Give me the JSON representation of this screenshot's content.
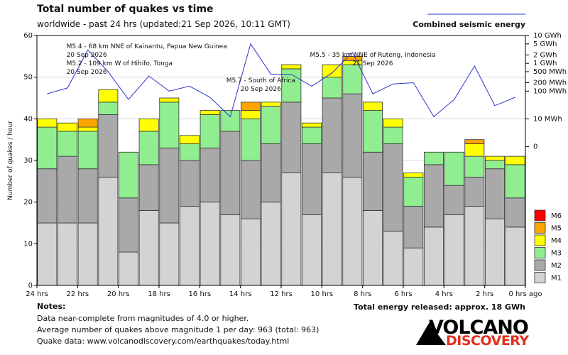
{
  "title": "Total number of quakes vs time",
  "subtitle": "worldwide - past 24 hrs (updated:21 Sep 2026, 10:11 GMT)",
  "energy_legend_label": "Combined seismic energy",
  "total_energy": "Total energy released: approx. 18 GWh",
  "notes": {
    "heading": "Notes:",
    "lines": [
      "Data near-complete from magnitudes of 4.0 or higher.",
      "Average number of quakes above magnitude 1 per day: 963 (total: 963)",
      "Quake data: www.volcanodiscovery.com/earthquakes/today.html"
    ]
  },
  "logo": {
    "line1": "VOLCANO",
    "line2": "DISCOVERY"
  },
  "colors": {
    "M1": "#d3d3d3",
    "M2": "#a9a9a9",
    "M3": "#90ee90",
    "M4": "#ffff00",
    "M5": "#ffa500",
    "M6": "#ff0000",
    "energy_line": "#2a35c8",
    "bar_outline": "#333333",
    "grid": "#dcdcdc"
  },
  "chart_data": {
    "type": "bar",
    "stacked": true,
    "ylabel": "Number of quakes / hour",
    "ylim": [
      0,
      60
    ],
    "yticks": [
      0,
      10,
      20,
      30,
      40,
      50,
      60
    ],
    "xlim": [
      24,
      0
    ],
    "xticks": [
      {
        "value": 24,
        "label": "24 hrs"
      },
      {
        "value": 22,
        "label": "22 hrs"
      },
      {
        "value": 20,
        "label": "20 hrs"
      },
      {
        "value": 18,
        "label": "18 hrs"
      },
      {
        "value": 16,
        "label": "16 hrs"
      },
      {
        "value": 14,
        "label": "14 hrs"
      },
      {
        "value": 12,
        "label": "12 hrs"
      },
      {
        "value": 10,
        "label": "10 hrs"
      },
      {
        "value": 8,
        "label": "8 hrs"
      },
      {
        "value": 6,
        "label": "6 hrs"
      },
      {
        "value": 4,
        "label": "4 hrs"
      },
      {
        "value": 2,
        "label": "2 hrs"
      },
      {
        "value": 0,
        "label": "0 hrs ago"
      }
    ],
    "hours_ago": [
      23.5,
      22.5,
      21.5,
      20.5,
      19.5,
      18.5,
      17.5,
      16.5,
      15.5,
      14.5,
      13.5,
      12.5,
      11.5,
      10.5,
      9.5,
      8.5,
      7.5,
      6.5,
      5.5,
      4.5,
      3.5,
      2.5,
      1.5,
      0.5
    ],
    "series": [
      {
        "name": "M1",
        "values": [
          15,
          15,
          15,
          26,
          8,
          18,
          15,
          19,
          20,
          17,
          16,
          20,
          27,
          17,
          27,
          26,
          18,
          13,
          9,
          14,
          17,
          19,
          16,
          14
        ]
      },
      {
        "name": "M2",
        "values": [
          13,
          16,
          13,
          15,
          13,
          11,
          18,
          11,
          13,
          20,
          14,
          14,
          17,
          17,
          18,
          20,
          14,
          21,
          10,
          15,
          7,
          7,
          12,
          7
        ]
      },
      {
        "name": "M3",
        "values": [
          10,
          6,
          9,
          3,
          11,
          8,
          11,
          4,
          8,
          5,
          10,
          9,
          8,
          4,
          5,
          7,
          10,
          4,
          7,
          3,
          8,
          5,
          2,
          8
        ]
      },
      {
        "name": "M4",
        "values": [
          2,
          2,
          1,
          3,
          0,
          3,
          1,
          2,
          1,
          0,
          2,
          1,
          1,
          1,
          3,
          1,
          2,
          2,
          1,
          0,
          0,
          3,
          1,
          2
        ]
      },
      {
        "name": "M5",
        "values": [
          0,
          0,
          2,
          0,
          0,
          0,
          0,
          0,
          0,
          0,
          2,
          0,
          0,
          0,
          0,
          1,
          0,
          0,
          0,
          0,
          0,
          1,
          0,
          0
        ]
      },
      {
        "name": "M6",
        "values": [
          0,
          0,
          0,
          0,
          0,
          0,
          0,
          0,
          0,
          0,
          0,
          0,
          0,
          0,
          0,
          0,
          0,
          0,
          0,
          0,
          0,
          0,
          0,
          0
        ]
      }
    ],
    "energy": {
      "name": "Combined seismic energy",
      "axis_ticks": [
        {
          "label": "10 GWh",
          "value_wh": 10000000000
        },
        {
          "label": "5 GWh",
          "value_wh": 5000000000
        },
        {
          "label": "2 GWh",
          "value_wh": 2000000000
        },
        {
          "label": "1 GWh",
          "value_wh": 1000000000
        },
        {
          "label": "500 MWh",
          "value_wh": 500000000
        },
        {
          "label": "200 MWh",
          "value_wh": 200000000
        },
        {
          "label": "100 MWh",
          "value_wh": 100000000
        },
        {
          "label": "10 MWh",
          "value_wh": 10000000
        },
        {
          "label": "0",
          "value_wh": 1000000
        }
      ],
      "values_wh": [
        80000000,
        130000000,
        3000000000,
        500000000,
        50000000,
        350000000,
        100000000,
        150000000,
        60000000,
        12000000,
        5000000000,
        400000000,
        400000000,
        150000000,
        450000000,
        2500000000,
        80000000,
        180000000,
        200000000,
        12000000,
        50000000,
        800000000,
        30000000,
        60000000
      ]
    },
    "annotations": [
      {
        "lines": [
          "M5.4 - 68 km NNE of Kainantu, Papua New Guinea",
          "20 Sep 2026"
        ],
        "anchor": "start",
        "at_hours": 22.55,
        "row": 0
      },
      {
        "lines": [
          "M5.2 - 109 km W of Hihifo, Tonga",
          "20 Sep 2026"
        ],
        "anchor": "start",
        "at_hours": 22.55,
        "row": 2
      },
      {
        "lines": [
          "M5.7 - South of Africa",
          "20 Sep 2026"
        ],
        "anchor": "middle",
        "at_hours": 13.0,
        "row": 4
      },
      {
        "lines": [
          "M5.5 - 35 km NNE of Ruteng, Indonesia",
          "21 Sep 2026"
        ],
        "anchor": "middle",
        "at_hours": 7.5,
        "row": 1
      }
    ],
    "legend": [
      "M6",
      "M5",
      "M4",
      "M3",
      "M2",
      "M1"
    ]
  }
}
